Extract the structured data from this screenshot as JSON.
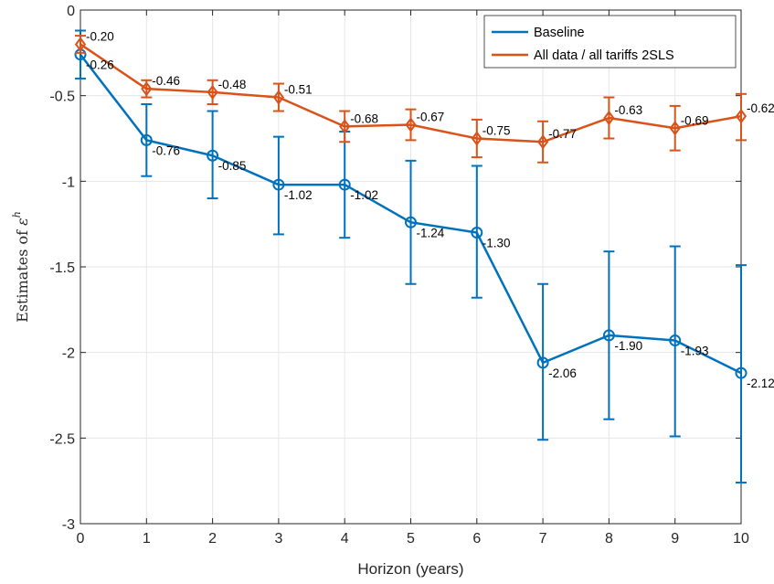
{
  "chart_data": {
    "type": "line",
    "title": "",
    "xlabel": "Horizon (years)",
    "ylabel_prefix": "Estimates of ",
    "ylabel_symbol": "ε",
    "ylabel_superscript": "h",
    "xlim": [
      0,
      10
    ],
    "ylim": [
      -3,
      0
    ],
    "x_ticks": [
      0,
      1,
      2,
      3,
      4,
      5,
      6,
      7,
      8,
      9,
      10
    ],
    "y_ticks": [
      0,
      -0.5,
      -1,
      -1.5,
      -2,
      -2.5,
      -3
    ],
    "y_tick_labels": [
      "0",
      "-0.5",
      "-1",
      "-1.5",
      "-2",
      "-2.5",
      "-3"
    ],
    "grid": true,
    "legend_position": "top-right",
    "x": [
      0,
      1,
      2,
      3,
      4,
      5,
      6,
      7,
      8,
      9,
      10
    ],
    "series": [
      {
        "name": "Baseline",
        "color": "#0072BD",
        "marker": "circle",
        "values": [
          -0.26,
          -0.76,
          -0.85,
          -1.02,
          -1.02,
          -1.24,
          -1.3,
          -2.06,
          -1.9,
          -1.93,
          -2.12
        ],
        "labels": [
          "-0.26",
          "-0.76",
          "-0.85",
          "-1.02",
          "-1.02",
          "-1.24",
          "-1.30",
          "-2.06",
          "-1.90",
          "-1.93",
          "-2.12"
        ],
        "ci_low": [
          -0.4,
          -0.97,
          -1.1,
          -1.31,
          -1.33,
          -1.6,
          -1.68,
          -2.51,
          -2.39,
          -2.49,
          -2.76
        ],
        "ci_high": [
          -0.12,
          -0.55,
          -0.59,
          -0.74,
          -0.71,
          -0.88,
          -0.91,
          -1.6,
          -1.41,
          -1.38,
          -1.49
        ]
      },
      {
        "name": "All data / all tariffs 2SLS",
        "color": "#D95319",
        "marker": "diamond",
        "values": [
          -0.2,
          -0.46,
          -0.48,
          -0.51,
          -0.68,
          -0.67,
          -0.75,
          -0.77,
          -0.63,
          -0.69,
          -0.62
        ],
        "labels": [
          "-0.20",
          "-0.46",
          "-0.48",
          "-0.51",
          "-0.68",
          "-0.67",
          "-0.75",
          "-0.77",
          "-0.63",
          "-0.69",
          "-0.62"
        ],
        "ci_low": [
          -0.25,
          -0.51,
          -0.55,
          -0.59,
          -0.77,
          -0.76,
          -0.86,
          -0.89,
          -0.75,
          -0.82,
          -0.76
        ],
        "ci_high": [
          -0.15,
          -0.41,
          -0.41,
          -0.43,
          -0.59,
          -0.58,
          -0.64,
          -0.65,
          -0.51,
          -0.56,
          -0.49
        ]
      }
    ]
  }
}
